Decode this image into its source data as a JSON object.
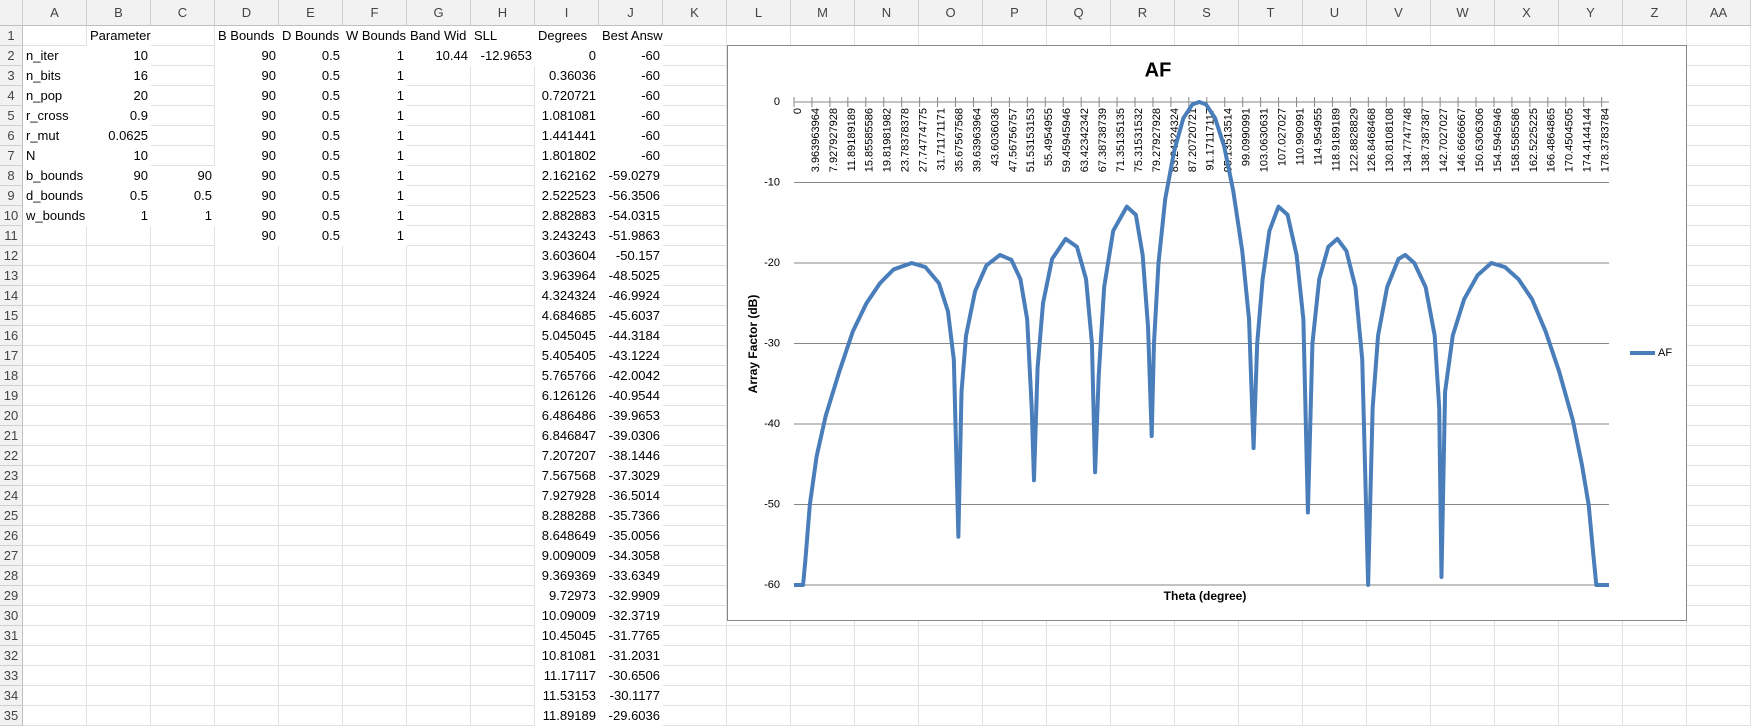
{
  "spreadsheet": {
    "column_headers": [
      "A",
      "B",
      "C",
      "D",
      "E",
      "F",
      "G",
      "H",
      "I",
      "J",
      "K",
      "L",
      "M",
      "N",
      "O",
      "P",
      "Q",
      "R",
      "S",
      "T",
      "U",
      "V",
      "W",
      "X",
      "Y",
      "Z",
      "AA"
    ],
    "row_numbers": [
      1,
      2,
      3,
      4,
      5,
      6,
      7,
      8,
      9,
      10,
      11,
      12,
      13,
      14,
      15,
      16,
      17,
      18,
      19,
      20,
      21,
      22,
      23,
      24,
      25,
      26,
      27,
      28,
      29,
      30,
      31,
      32,
      33,
      34,
      35
    ],
    "cells": {
      "B1": "Parameters",
      "D1": "B Bounds",
      "E1": "D Bounds",
      "F1": "W Bounds",
      "G1": "Band Wid",
      "H1": "SLL",
      "I1": "Degrees",
      "J1": "Best Answers",
      "A2": "n_iter",
      "B2": "10",
      "D2": "90",
      "E2": "0.5",
      "F2": "1",
      "G2": "10.44",
      "H2": "-12.9653",
      "I2": "0",
      "J2": "-60",
      "A3": "n_bits",
      "B3": "16",
      "D3": "90",
      "E3": "0.5",
      "F3": "1",
      "I3": "0.36036",
      "J3": "-60",
      "A4": "n_pop",
      "B4": "20",
      "D4": "90",
      "E4": "0.5",
      "F4": "1",
      "I4": "0.720721",
      "J4": "-60",
      "A5": "r_cross",
      "B5": "0.9",
      "D5": "90",
      "E5": "0.5",
      "F5": "1",
      "I5": "1.081081",
      "J5": "-60",
      "A6": "r_mut",
      "B6": "0.0625",
      "D6": "90",
      "E6": "0.5",
      "F6": "1",
      "I6": "1.441441",
      "J6": "-60",
      "A7": "N",
      "B7": "10",
      "D7": "90",
      "E7": "0.5",
      "F7": "1",
      "I7": "1.801802",
      "J7": "-60",
      "A8": "b_bounds",
      "B8": "90",
      "C8": "90",
      "D8": "90",
      "E8": "0.5",
      "F8": "1",
      "I8": "2.162162",
      "J8": "-59.0279",
      "A9": "d_bounds",
      "B9": "0.5",
      "C9": "0.5",
      "D9": "90",
      "E9": "0.5",
      "F9": "1",
      "I9": "2.522523",
      "J9": "-56.3506",
      "A10": "w_bounds",
      "B10": "1",
      "C10": "1",
      "D10": "90",
      "E10": "0.5",
      "F10": "1",
      "I10": "2.882883",
      "J10": "-54.0315",
      "D11": "90",
      "E11": "0.5",
      "F11": "1",
      "I11": "3.243243",
      "J11": "-51.9863",
      "I12": "3.603604",
      "J12": "-50.157",
      "I13": "3.963964",
      "J13": "-48.5025",
      "I14": "4.324324",
      "J14": "-46.9924",
      "I15": "4.684685",
      "J15": "-45.6037",
      "I16": "5.045045",
      "J16": "-44.3184",
      "I17": "5.405405",
      "J17": "-43.1224",
      "I18": "5.765766",
      "J18": "-42.0042",
      "I19": "6.126126",
      "J19": "-40.9544",
      "I20": "6.486486",
      "J20": "-39.9653",
      "I21": "6.846847",
      "J21": "-39.0306",
      "I22": "7.207207",
      "J22": "-38.1446",
      "I23": "7.567568",
      "J23": "-37.3029",
      "I24": "7.927928",
      "J24": "-36.5014",
      "I25": "8.288288",
      "J25": "-35.7366",
      "I26": "8.648649",
      "J26": "-35.0056",
      "I27": "9.009009",
      "J27": "-34.3058",
      "I28": "9.369369",
      "J28": "-33.6349",
      "I29": "9.72973",
      "J29": "-32.9909",
      "I30": "10.09009",
      "J30": "-32.3719",
      "I31": "10.45045",
      "J31": "-31.7765",
      "I32": "10.81081",
      "J32": "-31.2031",
      "I33": "11.17117",
      "J33": "-30.6506",
      "I34": "11.53153",
      "J34": "-30.1177",
      "I35": "11.89189",
      "J35": "-29.6036"
    }
  },
  "chart_data": {
    "type": "line",
    "title": "AF",
    "x_label": "Theta (degree)",
    "y_label": "Array Factor (dB)",
    "x": [
      0,
      2,
      2.5,
      3.5,
      5,
      7,
      10,
      13,
      16,
      19,
      22,
      26,
      29,
      32,
      34,
      35.3,
      36.3,
      37,
      38,
      40,
      42.5,
      45.5,
      48,
      50,
      51.5,
      52.5,
      53,
      53.8,
      55,
      57,
      60,
      62.5,
      64.5,
      65.8,
      66.5,
      67.3,
      68.5,
      70.5,
      73.5,
      75.5,
      77,
      78.2,
      79,
      79.5,
      80.5,
      82,
      84,
      86,
      88,
      89.5,
      91,
      93,
      95,
      97,
      99,
      100.5,
      101.5,
      102.3,
      103.5,
      105,
      107,
      109,
      111,
      112.5,
      113.5,
      114.5,
      116,
      118,
      120,
      122,
      124,
      125.5,
      126.8,
      127.8,
      129,
      131,
      133.5,
      135,
      137,
      139.5,
      141.5,
      142.5,
      143,
      143.8,
      145.5,
      148,
      151,
      154,
      157,
      160,
      163,
      166,
      169,
      172,
      174,
      175.5,
      176.5,
      177.2,
      180
    ],
    "series": [
      {
        "name": "AF",
        "color": "#4a7ebb",
        "values": [
          -60,
          -60,
          -57,
          -50,
          -44,
          -39,
          -33.5,
          -28.5,
          -25,
          -22.5,
          -20.8,
          -20,
          -20.5,
          -22.5,
          -26,
          -32,
          -54,
          -36,
          -29,
          -23.5,
          -20.3,
          -19,
          -19.6,
          -22,
          -27,
          -38,
          -47,
          -33,
          -25,
          -19.5,
          -17,
          -18,
          -22,
          -30,
          -46,
          -34,
          -23,
          -16,
          -13,
          -14,
          -19,
          -28,
          -41.5,
          -30,
          -20,
          -12,
          -6,
          -2,
          -0.3,
          0,
          -0.3,
          -2,
          -5.5,
          -11,
          -18.5,
          -27,
          -43,
          -30,
          -22,
          -16,
          -13,
          -14,
          -19,
          -27,
          -51,
          -30,
          -22,
          -18,
          -17,
          -18.5,
          -23,
          -32,
          -60,
          -38,
          -29,
          -23,
          -19.5,
          -19,
          -20,
          -23,
          -29,
          -38,
          -59,
          -36,
          -29,
          -24.5,
          -21.5,
          -20,
          -20.5,
          -22,
          -24.5,
          -28.5,
          -33.5,
          -39.5,
          -45,
          -50,
          -56,
          -60,
          -60
        ]
      }
    ],
    "xlim": [
      0,
      180
    ],
    "ylim": [
      -60,
      0
    ],
    "xticks": [
      0,
      3.963963964,
      7.927927928,
      11.89189189,
      15.85585586,
      19.81981982,
      23.78378378,
      27.74774775,
      31.71171171,
      35.67567568,
      39.63963964,
      43.6036036,
      47.56756757,
      51.53153153,
      55.4954955,
      59.45945946,
      63.42342342,
      67.38738739,
      71.35135135,
      75.31531532,
      79.27927928,
      83.24324324,
      87.20720721,
      91.17117117,
      95.13513514,
      99.0990991,
      103.0630631,
      107.027027,
      110.990991,
      114.954955,
      118.9189189,
      122.8828829,
      126.8468468,
      130.8108108,
      134.7747748,
      138.7387387,
      142.7027027,
      146.6666667,
      150.6306306,
      154.5945946,
      158.5585586,
      162.5225225,
      166.4864865,
      170.4504505,
      174.4144144,
      178.3783784
    ],
    "yticks": [
      0,
      -10,
      -20,
      -30,
      -40,
      -50,
      -60
    ],
    "grid": true,
    "legend": "right"
  }
}
